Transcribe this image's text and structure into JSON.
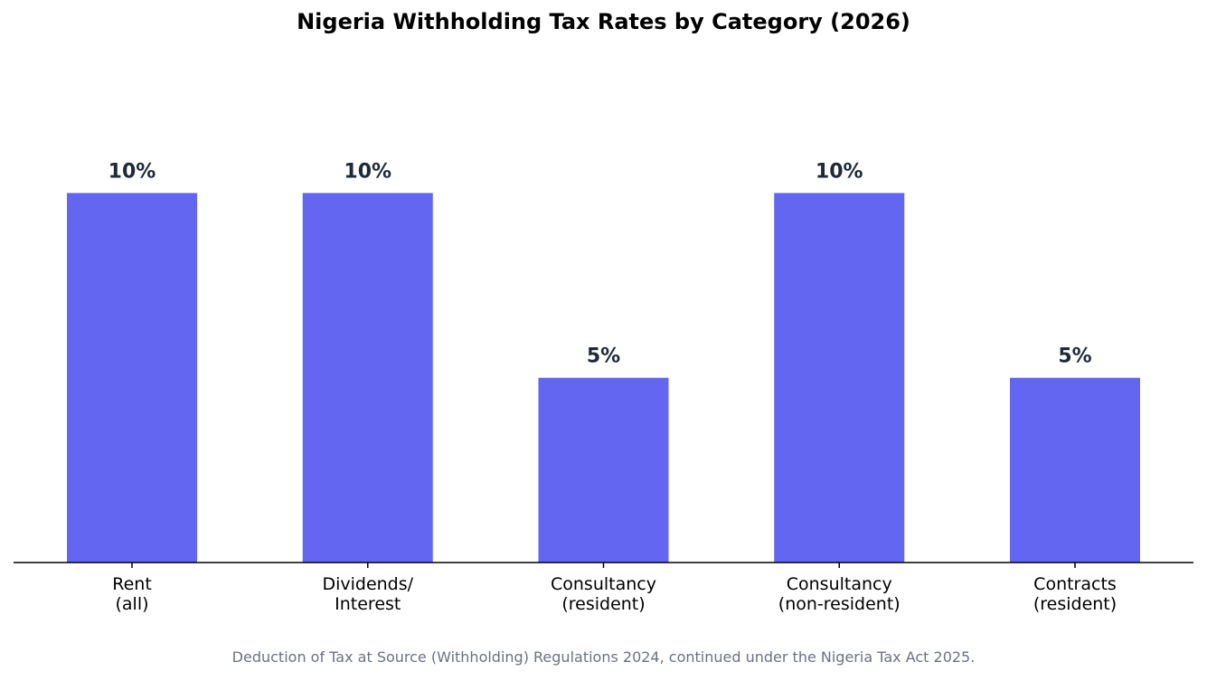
{
  "chart_data": {
    "type": "bar",
    "title": "Nigeria Withholding Tax Rates by Category (2026)",
    "categories": [
      [
        "Rent",
        "(all)"
      ],
      [
        "Dividends/",
        "Interest"
      ],
      [
        "Consultancy",
        "(resident)"
      ],
      [
        "Consultancy",
        "(non-resident)"
      ],
      [
        "Contracts",
        "(resident)"
      ]
    ],
    "values": [
      10,
      10,
      5,
      10,
      5
    ],
    "value_labels": [
      "10%",
      "10%",
      "5%",
      "10%",
      "5%"
    ],
    "unit": "%",
    "ylim": [
      0,
      14
    ],
    "grid": false,
    "xlabel": "",
    "ylabel": "",
    "bar_color": "#6366f1",
    "label_color": "#1f2937",
    "footnote": "Deduction of Tax at Source (Withholding) Regulations 2024, continued under the Nigeria Tax Act 2025."
  }
}
